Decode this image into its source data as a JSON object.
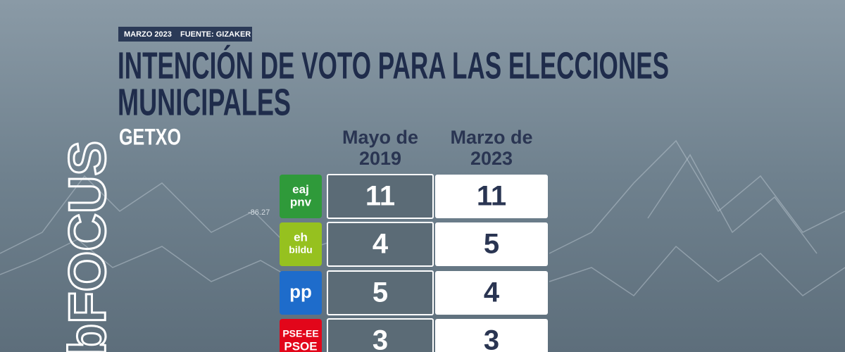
{
  "header": {
    "date": "MARZO 2023",
    "source": "FUENTE: GIZAKER"
  },
  "title": [
    "INTENCIÓN DE VOTO PARA LAS ELECCIONES",
    "MUNICIPALES"
  ],
  "municipality": "GETXO",
  "brand": "bFOCUS",
  "background_label": "-86.27",
  "table": {
    "columns": [
      [
        "Mayo de",
        "2019"
      ],
      [
        "Marzo de",
        "2023"
      ]
    ],
    "rows": [
      {
        "logo": [
          "eaj",
          "pnv"
        ],
        "color": "#2f9a3a",
        "values": [
          11,
          11
        ]
      },
      {
        "logo": [
          "eh",
          "bildu"
        ],
        "color": "#96c11f",
        "values": [
          4,
          5
        ]
      },
      {
        "logo": [
          "pp"
        ],
        "color": "#1e6ccb",
        "values": [
          5,
          4
        ]
      },
      {
        "logo": [
          "PSE-EE",
          "PSOE"
        ],
        "color": "#e2061a",
        "values": [
          3,
          3
        ]
      }
    ]
  }
}
